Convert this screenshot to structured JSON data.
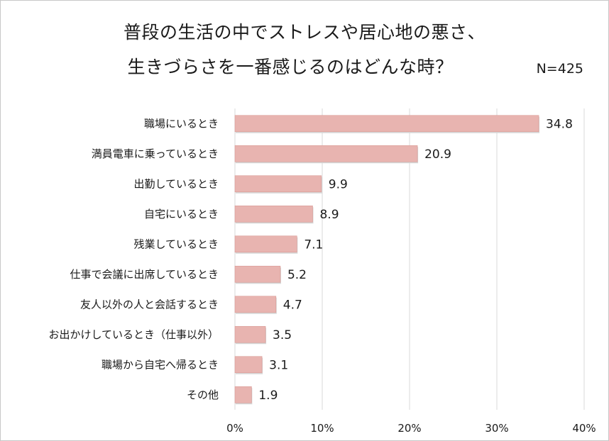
{
  "chart_data": {
    "type": "bar",
    "orientation": "horizontal",
    "title_lines": [
      "普段の生活の中でストレスや居心地の悪さ、",
      "生きづらさを一番感じるのはどんな時？"
    ],
    "sample_size": "N=425",
    "categories": [
      "職場にいるとき",
      "満員電車に乗っているとき",
      "出勤しているとき",
      "自宅にいるとき",
      "残業しているとき",
      "仕事で会議に出席しているとき",
      "友人以外の人と会話するとき",
      "お出かけしているとき（仕事以外）",
      "職場から自宅へ帰るとき",
      "その他"
    ],
    "values": [
      34.8,
      20.9,
      9.9,
      8.9,
      7.1,
      5.2,
      4.7,
      3.5,
      3.1,
      1.9
    ],
    "value_labels": [
      "34.8",
      "20.9",
      "9.9",
      "8.9",
      "7.1",
      "5.2",
      "4.7",
      "3.5",
      "3.1",
      "1.9"
    ],
    "xlim": [
      0,
      40
    ],
    "xticks": [
      0,
      10,
      20,
      30,
      40
    ],
    "xtick_labels": [
      "0%",
      "10%",
      "20%",
      "30%",
      "40%"
    ],
    "grid": true,
    "bar_color": "#e8b4b0",
    "bar_edge_color": "#d99a95",
    "grid_color": "#d9d9d9"
  }
}
